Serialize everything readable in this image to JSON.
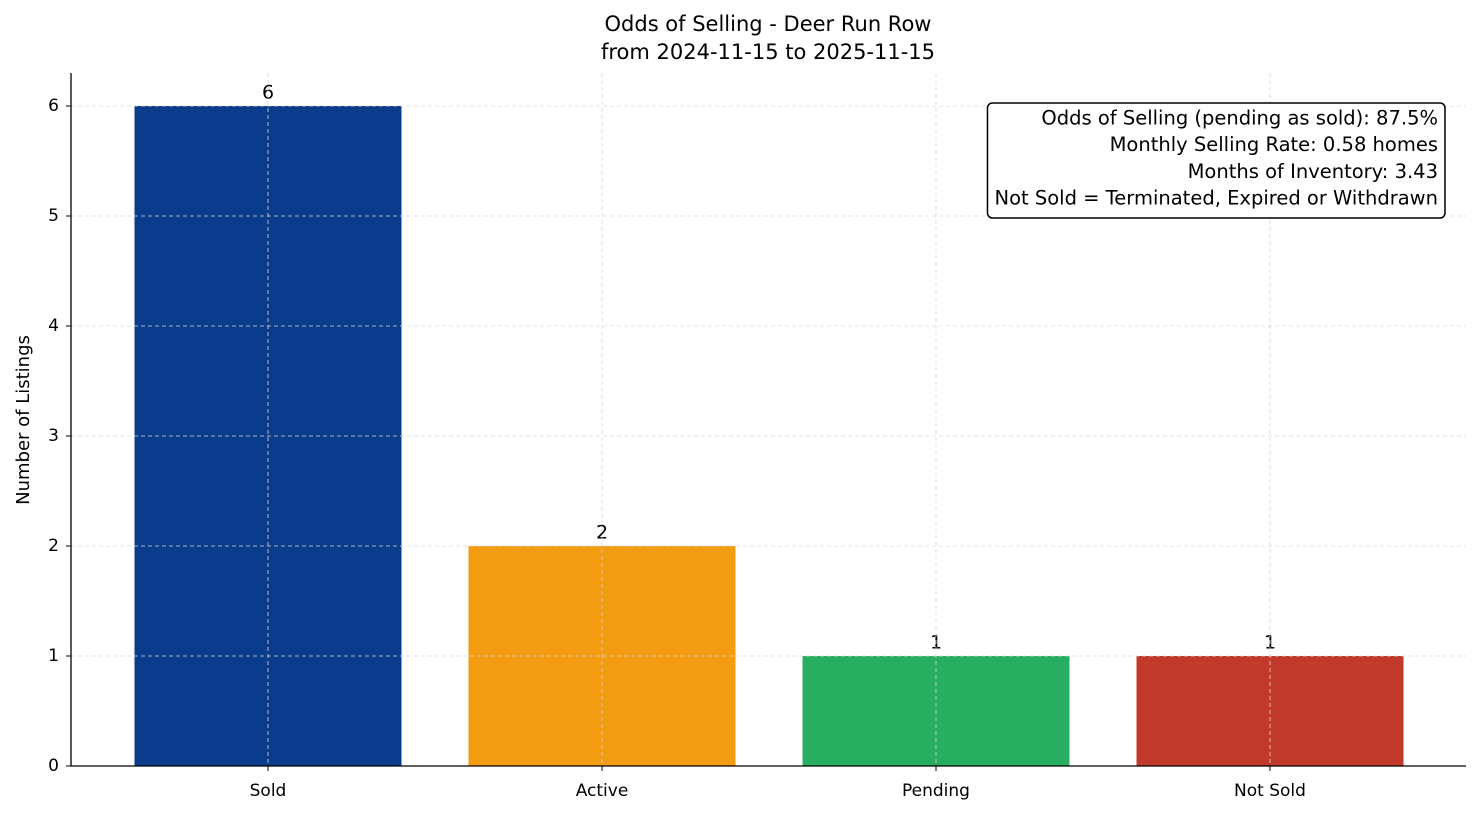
{
  "chart_data": {
    "type": "bar",
    "title": "Odds of Selling - Deer Run Row",
    "subtitle": "from 2024-11-15 to 2025-11-15",
    "y_label": "Number of Listings",
    "categories": [
      "Sold",
      "Active",
      "Pending",
      "Not Sold"
    ],
    "values": [
      6,
      2,
      1,
      1
    ],
    "colors": [
      "#0b3c8c",
      "#f39c12",
      "#27ae60",
      "#c0392b"
    ],
    "ylim": [
      0,
      6.3
    ],
    "yticks": [
      0,
      1,
      2,
      3,
      4,
      5,
      6
    ],
    "grid": true,
    "annotation": [
      "Odds of Selling (pending as sold): 87.5%",
      "Monthly Selling Rate: 0.58 homes",
      "Months of Inventory: 3.43",
      "Not Sold = Terminated, Expired or Withdrawn"
    ],
    "annotation_corner": "upper right"
  }
}
